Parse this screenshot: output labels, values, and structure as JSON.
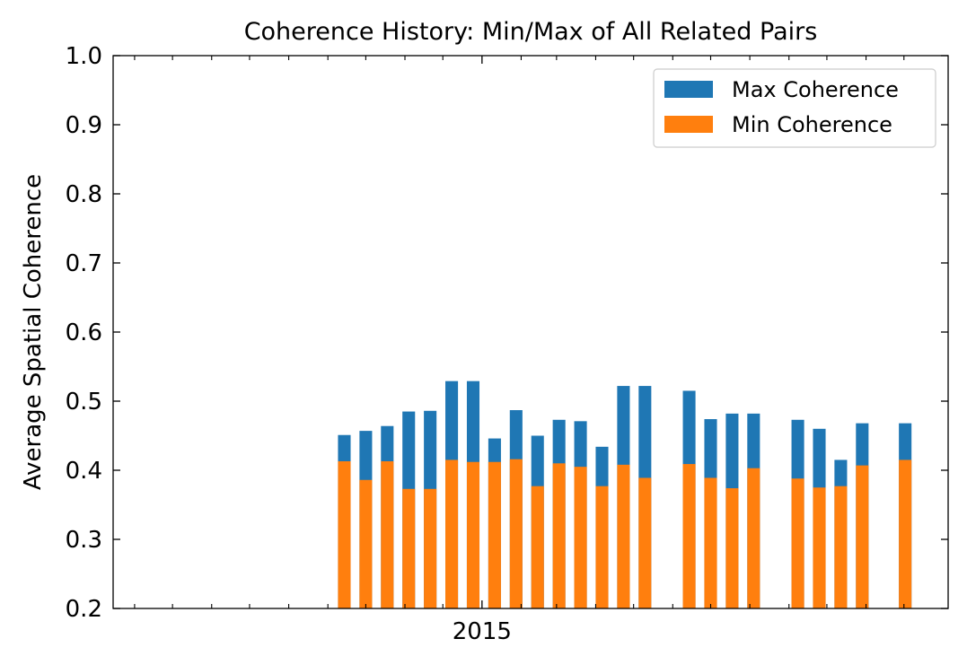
{
  "chart_data": {
    "type": "bar",
    "stacked_overlay": true,
    "title": "Coherence History: Min/Max of All Related Pairs",
    "xlabel": "",
    "ylabel": "Average Spatial Coherence",
    "ylim": [
      0.2,
      1.0
    ],
    "yticks": [
      0.2,
      0.3,
      0.4,
      0.5,
      0.6,
      0.7,
      0.8,
      0.9,
      1.0
    ],
    "ytick_labels": [
      "0.2",
      "0.3",
      "0.4",
      "0.5",
      "0.6",
      "0.7",
      "0.8",
      "0.9",
      "1.0"
    ],
    "xlim": [
      "2014-03-15",
      "2016-01-05"
    ],
    "xtick_major": [
      {
        "date": "2015-01-01",
        "label": "2015"
      }
    ],
    "xtick_minor": [
      "2014-04-01",
      "2014-05-01",
      "2014-06-01",
      "2014-07-01",
      "2014-08-01",
      "2014-09-01",
      "2014-10-01",
      "2014-11-01",
      "2014-12-01",
      "2015-02-01",
      "2015-03-01",
      "2015-04-01",
      "2015-05-01",
      "2015-06-01",
      "2015-07-01",
      "2015-08-01",
      "2015-09-01",
      "2015-10-01",
      "2015-11-01",
      "2015-12-01"
    ],
    "bar_width_days": 10,
    "grid": false,
    "legend_position": "top-right",
    "x": [
      "2014-09-14",
      "2014-10-01",
      "2014-10-18",
      "2014-11-04",
      "2014-11-21",
      "2014-12-08",
      "2014-12-25",
      "2015-01-11",
      "2015-01-28",
      "2015-02-14",
      "2015-03-03",
      "2015-03-20",
      "2015-04-06",
      "2015-04-23",
      "2015-05-10",
      "2015-06-14",
      "2015-07-01",
      "2015-07-18",
      "2015-08-04",
      "2015-09-08",
      "2015-09-25",
      "2015-10-12",
      "2015-10-29",
      "2015-12-02"
    ],
    "series": [
      {
        "name": "Max Coherence",
        "color": "#1f77b4",
        "values": [
          0.451,
          0.457,
          0.464,
          0.485,
          0.486,
          0.529,
          0.529,
          0.446,
          0.487,
          0.45,
          0.473,
          0.471,
          0.434,
          0.522,
          0.522,
          0.515,
          0.474,
          0.482,
          0.482,
          0.473,
          0.46,
          0.415,
          0.468,
          0.468
        ]
      },
      {
        "name": "Min Coherence",
        "color": "#ff7f0e",
        "values": [
          0.413,
          0.386,
          0.413,
          0.373,
          0.373,
          0.415,
          0.412,
          0.412,
          0.416,
          0.377,
          0.41,
          0.405,
          0.377,
          0.408,
          0.389,
          0.409,
          0.389,
          0.374,
          0.403,
          0.388,
          0.375,
          0.377,
          0.407,
          0.415
        ]
      }
    ]
  }
}
